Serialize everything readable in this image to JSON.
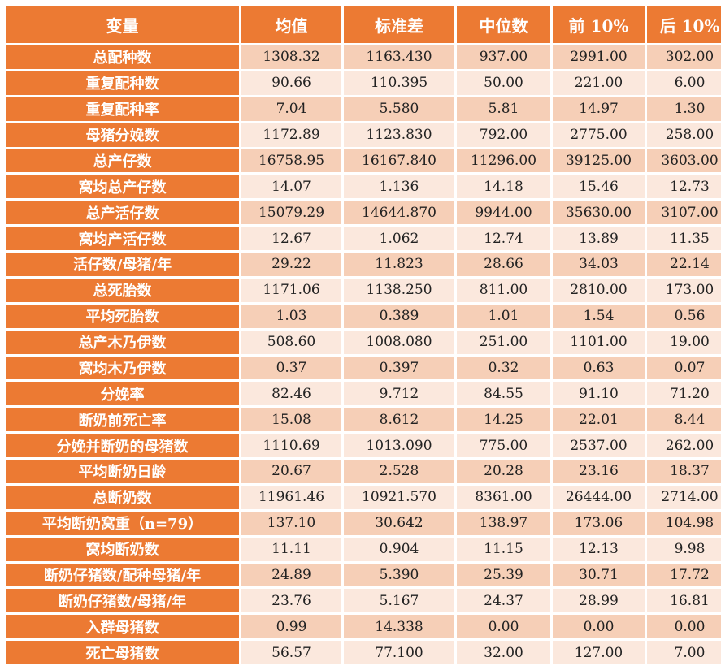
{
  "table": {
    "headers": [
      "变量",
      "均值",
      "标准差",
      "中位数",
      "前 10%",
      "后 10%"
    ],
    "rows": [
      [
        "总配种数",
        "1308.32",
        "1163.430",
        "937.00",
        "2991.00",
        "302.00"
      ],
      [
        "重复配种数",
        "90.66",
        "110.395",
        "50.00",
        "221.00",
        "6.00"
      ],
      [
        "重复配种率",
        "7.04",
        "5.580",
        "5.81",
        "14.97",
        "1.30"
      ],
      [
        "母猪分娩数",
        "1172.89",
        "1123.830",
        "792.00",
        "2775.00",
        "258.00"
      ],
      [
        "总产仔数",
        "16758.95",
        "16167.840",
        "11296.00",
        "39125.00",
        "3603.00"
      ],
      [
        "窝均总产仔数",
        "14.07",
        "1.136",
        "14.18",
        "15.46",
        "12.73"
      ],
      [
        "总产活仔数",
        "15079.29",
        "14644.870",
        "9944.00",
        "35630.00",
        "3107.00"
      ],
      [
        "窝均产活仔数",
        "12.67",
        "1.062",
        "12.74",
        "13.89",
        "11.35"
      ],
      [
        "活仔数/母猪/年",
        "29.22",
        "11.823",
        "28.66",
        "34.03",
        "22.14"
      ],
      [
        "总死胎数",
        "1171.06",
        "1138.250",
        "811.00",
        "2810.00",
        "173.00"
      ],
      [
        "平均死胎数",
        "1.03",
        "0.389",
        "1.01",
        "1.54",
        "0.56"
      ],
      [
        "总产木乃伊数",
        "508.60",
        "1008.080",
        "251.00",
        "1101.00",
        "19.00"
      ],
      [
        "窝均木乃伊数",
        "0.37",
        "0.397",
        "0.32",
        "0.63",
        "0.07"
      ],
      [
        "分娩率",
        "82.46",
        "9.712",
        "84.55",
        "91.10",
        "71.20"
      ],
      [
        "断奶前死亡率",
        "15.08",
        "8.612",
        "14.25",
        "22.01",
        "8.44"
      ],
      [
        "分娩并断奶的母猪数",
        "1110.69",
        "1013.090",
        "775.00",
        "2537.00",
        "262.00"
      ],
      [
        "平均断奶日龄",
        "20.67",
        "2.528",
        "20.28",
        "23.16",
        "18.37"
      ],
      [
        "总断奶数",
        "11961.46",
        "10921.570",
        "8361.00",
        "26444.00",
        "2714.00"
      ],
      [
        "平均断奶窝重（n=79）",
        "137.10",
        "30.642",
        "138.97",
        "173.06",
        "104.98"
      ],
      [
        "窝均断奶数",
        "11.11",
        "0.904",
        "11.15",
        "12.13",
        "9.98"
      ],
      [
        "断奶仔猪数/配种母猪/年",
        "24.89",
        "5.390",
        "25.39",
        "30.71",
        "17.72"
      ],
      [
        "断奶仔猪数/母猪/年",
        "23.76",
        "5.167",
        "24.37",
        "28.99",
        "16.81"
      ],
      [
        "入群母猪数",
        "0.99",
        "14.338",
        "0.00",
        "0.00",
        "0.00"
      ],
      [
        "死亡母猪数",
        "56.57",
        "77.100",
        "32.00",
        "127.00",
        "7.00"
      ]
    ]
  },
  "colors": {
    "header_bg": "#ec7a33",
    "header_text": "#ffffff",
    "row_dark": "#f6cfb7",
    "row_light": "#fbe8dd"
  }
}
